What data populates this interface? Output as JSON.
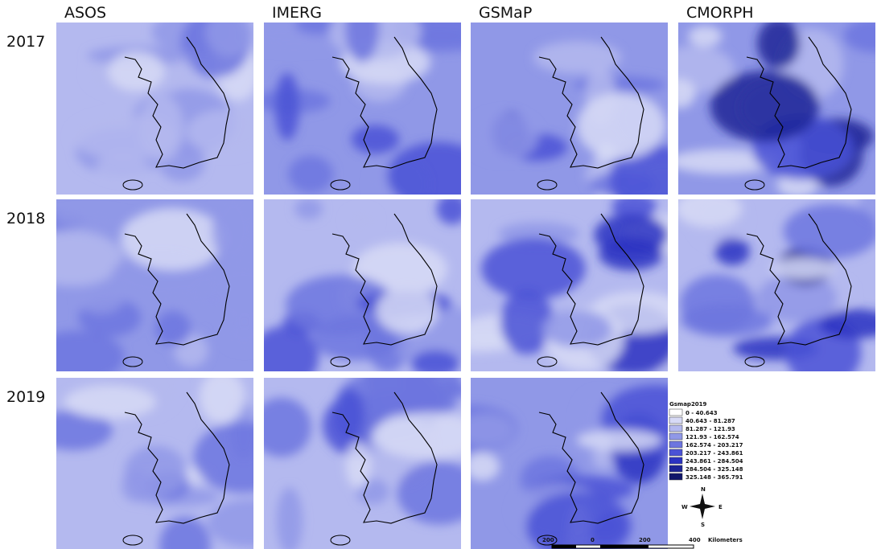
{
  "columns": [
    "ASOS",
    "IMERG",
    "GSMaP",
    "CMORPH"
  ],
  "rows": [
    "2017",
    "2018",
    "2019"
  ],
  "legend": {
    "title": "Gsmap2019",
    "items": [
      {
        "label": "0 - 40.643",
        "color": "#ffffff"
      },
      {
        "label": "40.643 - 81.287",
        "color": "#d7daf6"
      },
      {
        "label": "81.287 - 121.93",
        "color": "#b4b9ef"
      },
      {
        "label": "121.93 - 162.574",
        "color": "#9098e7"
      },
      {
        "label": "162.574 - 203.217",
        "color": "#6d75df"
      },
      {
        "label": "203.217 - 243.861",
        "color": "#4a52d6"
      },
      {
        "label": "243.861 - 284.504",
        "color": "#2b33c2"
      },
      {
        "label": "284.504 - 325.148",
        "color": "#1c2497"
      },
      {
        "label": "325.148 - 365.791",
        "color": "#10166b"
      }
    ]
  },
  "compass": {
    "north": "N",
    "south": "S",
    "west": "W",
    "east": "E"
  },
  "scale_bar": {
    "labels": [
      "200",
      "0",
      "200",
      "400",
      "Kilometers"
    ]
  }
}
